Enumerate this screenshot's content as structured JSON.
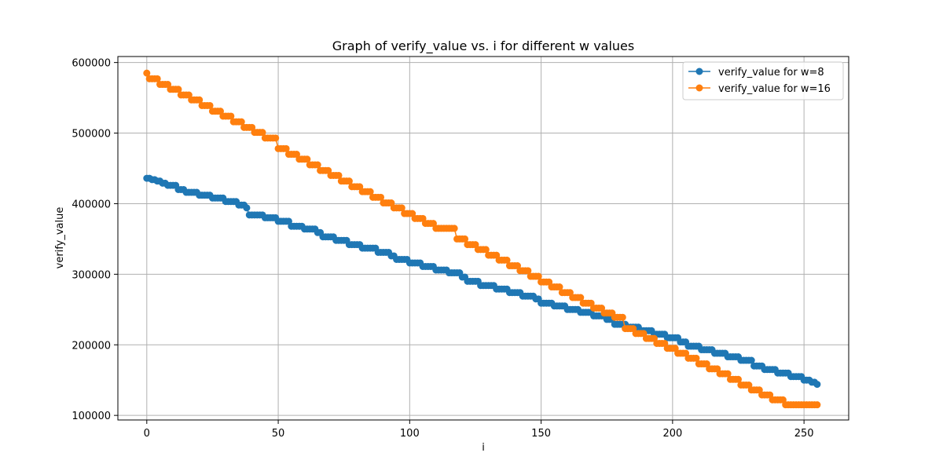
{
  "chart_data": {
    "type": "line",
    "title": "Graph of verify_value vs. i for different w values",
    "xlabel": "i",
    "ylabel": "verify_value",
    "xlim": [
      -11.0,
      267.0
    ],
    "ylim": [
      93500,
      608500
    ],
    "xticks": [
      0,
      50,
      100,
      150,
      200,
      250
    ],
    "yticks": [
      100000,
      200000,
      300000,
      400000,
      500000,
      600000
    ],
    "grid": true,
    "legend_position": "top-right",
    "marker": "circle",
    "series": [
      {
        "name": "verify_value for w=8",
        "color": "#1f77b4",
        "x_start": 0,
        "x_end": 255,
        "steps": [
          [
            0,
            436000
          ],
          [
            2,
            434000
          ],
          [
            4,
            432000
          ],
          [
            6,
            429000
          ],
          [
            8,
            426000
          ],
          [
            12,
            420000
          ],
          [
            15,
            416000
          ],
          [
            20,
            412000
          ],
          [
            25,
            408000
          ],
          [
            30,
            403000
          ],
          [
            35,
            398000
          ],
          [
            38,
            394000
          ],
          [
            39,
            384000
          ],
          [
            45,
            380000
          ],
          [
            50,
            375000
          ],
          [
            55,
            368000
          ],
          [
            60,
            364000
          ],
          [
            65,
            359000
          ],
          [
            67,
            353000
          ],
          [
            72,
            348000
          ],
          [
            77,
            342000
          ],
          [
            82,
            337000
          ],
          [
            88,
            331000
          ],
          [
            93,
            326000
          ],
          [
            95,
            321000
          ],
          [
            100,
            316000
          ],
          [
            105,
            311000
          ],
          [
            110,
            306000
          ],
          [
            115,
            302000
          ],
          [
            120,
            296000
          ],
          [
            122,
            290000
          ],
          [
            127,
            284000
          ],
          [
            133,
            279000
          ],
          [
            138,
            274000
          ],
          [
            143,
            269000
          ],
          [
            148,
            265000
          ],
          [
            150,
            259000
          ],
          [
            155,
            255000
          ],
          [
            160,
            250000
          ],
          [
            165,
            246000
          ],
          [
            170,
            241000
          ],
          [
            175,
            236000
          ],
          [
            178,
            229000
          ],
          [
            183,
            225000
          ],
          [
            188,
            220000
          ],
          [
            193,
            215000
          ],
          [
            198,
            210000
          ],
          [
            203,
            204000
          ],
          [
            206,
            198000
          ],
          [
            211,
            193000
          ],
          [
            216,
            188000
          ],
          [
            221,
            183000
          ],
          [
            226,
            178000
          ],
          [
            231,
            170000
          ],
          [
            235,
            165000
          ],
          [
            240,
            160000
          ],
          [
            245,
            155000
          ],
          [
            250,
            150000
          ],
          [
            253,
            147000
          ],
          [
            255,
            144000
          ]
        ]
      },
      {
        "name": "verify_value for w=16",
        "color": "#ff7f0e",
        "x_start": 0,
        "x_end": 255,
        "steps": [
          [
            0,
            585000
          ],
          [
            1,
            577000
          ],
          [
            5,
            569000
          ],
          [
            9,
            562000
          ],
          [
            13,
            554000
          ],
          [
            17,
            547000
          ],
          [
            21,
            539000
          ],
          [
            25,
            531000
          ],
          [
            29,
            524000
          ],
          [
            33,
            516000
          ],
          [
            37,
            508000
          ],
          [
            41,
            501000
          ],
          [
            45,
            493000
          ],
          [
            50,
            478000
          ],
          [
            54,
            470000
          ],
          [
            58,
            463000
          ],
          [
            62,
            455000
          ],
          [
            66,
            447000
          ],
          [
            70,
            440000
          ],
          [
            74,
            432000
          ],
          [
            78,
            424000
          ],
          [
            82,
            417000
          ],
          [
            86,
            409000
          ],
          [
            90,
            401000
          ],
          [
            94,
            394000
          ],
          [
            98,
            386000
          ],
          [
            102,
            379000
          ],
          [
            106,
            372000
          ],
          [
            110,
            365000
          ],
          [
            118,
            350000
          ],
          [
            122,
            342000
          ],
          [
            126,
            335000
          ],
          [
            130,
            327000
          ],
          [
            134,
            320000
          ],
          [
            138,
            312000
          ],
          [
            142,
            305000
          ],
          [
            146,
            297000
          ],
          [
            150,
            289000
          ],
          [
            154,
            282000
          ],
          [
            158,
            274000
          ],
          [
            162,
            267000
          ],
          [
            166,
            259000
          ],
          [
            170,
            252000
          ],
          [
            174,
            245000
          ],
          [
            178,
            239000
          ],
          [
            182,
            223000
          ],
          [
            186,
            216000
          ],
          [
            190,
            209000
          ],
          [
            194,
            202000
          ],
          [
            198,
            195000
          ],
          [
            202,
            188000
          ],
          [
            206,
            181000
          ],
          [
            210,
            173000
          ],
          [
            214,
            166000
          ],
          [
            218,
            159000
          ],
          [
            222,
            151000
          ],
          [
            226,
            143000
          ],
          [
            230,
            136000
          ],
          [
            234,
            129000
          ],
          [
            238,
            122000
          ],
          [
            243,
            115000
          ],
          [
            255,
            115000
          ]
        ]
      }
    ]
  }
}
